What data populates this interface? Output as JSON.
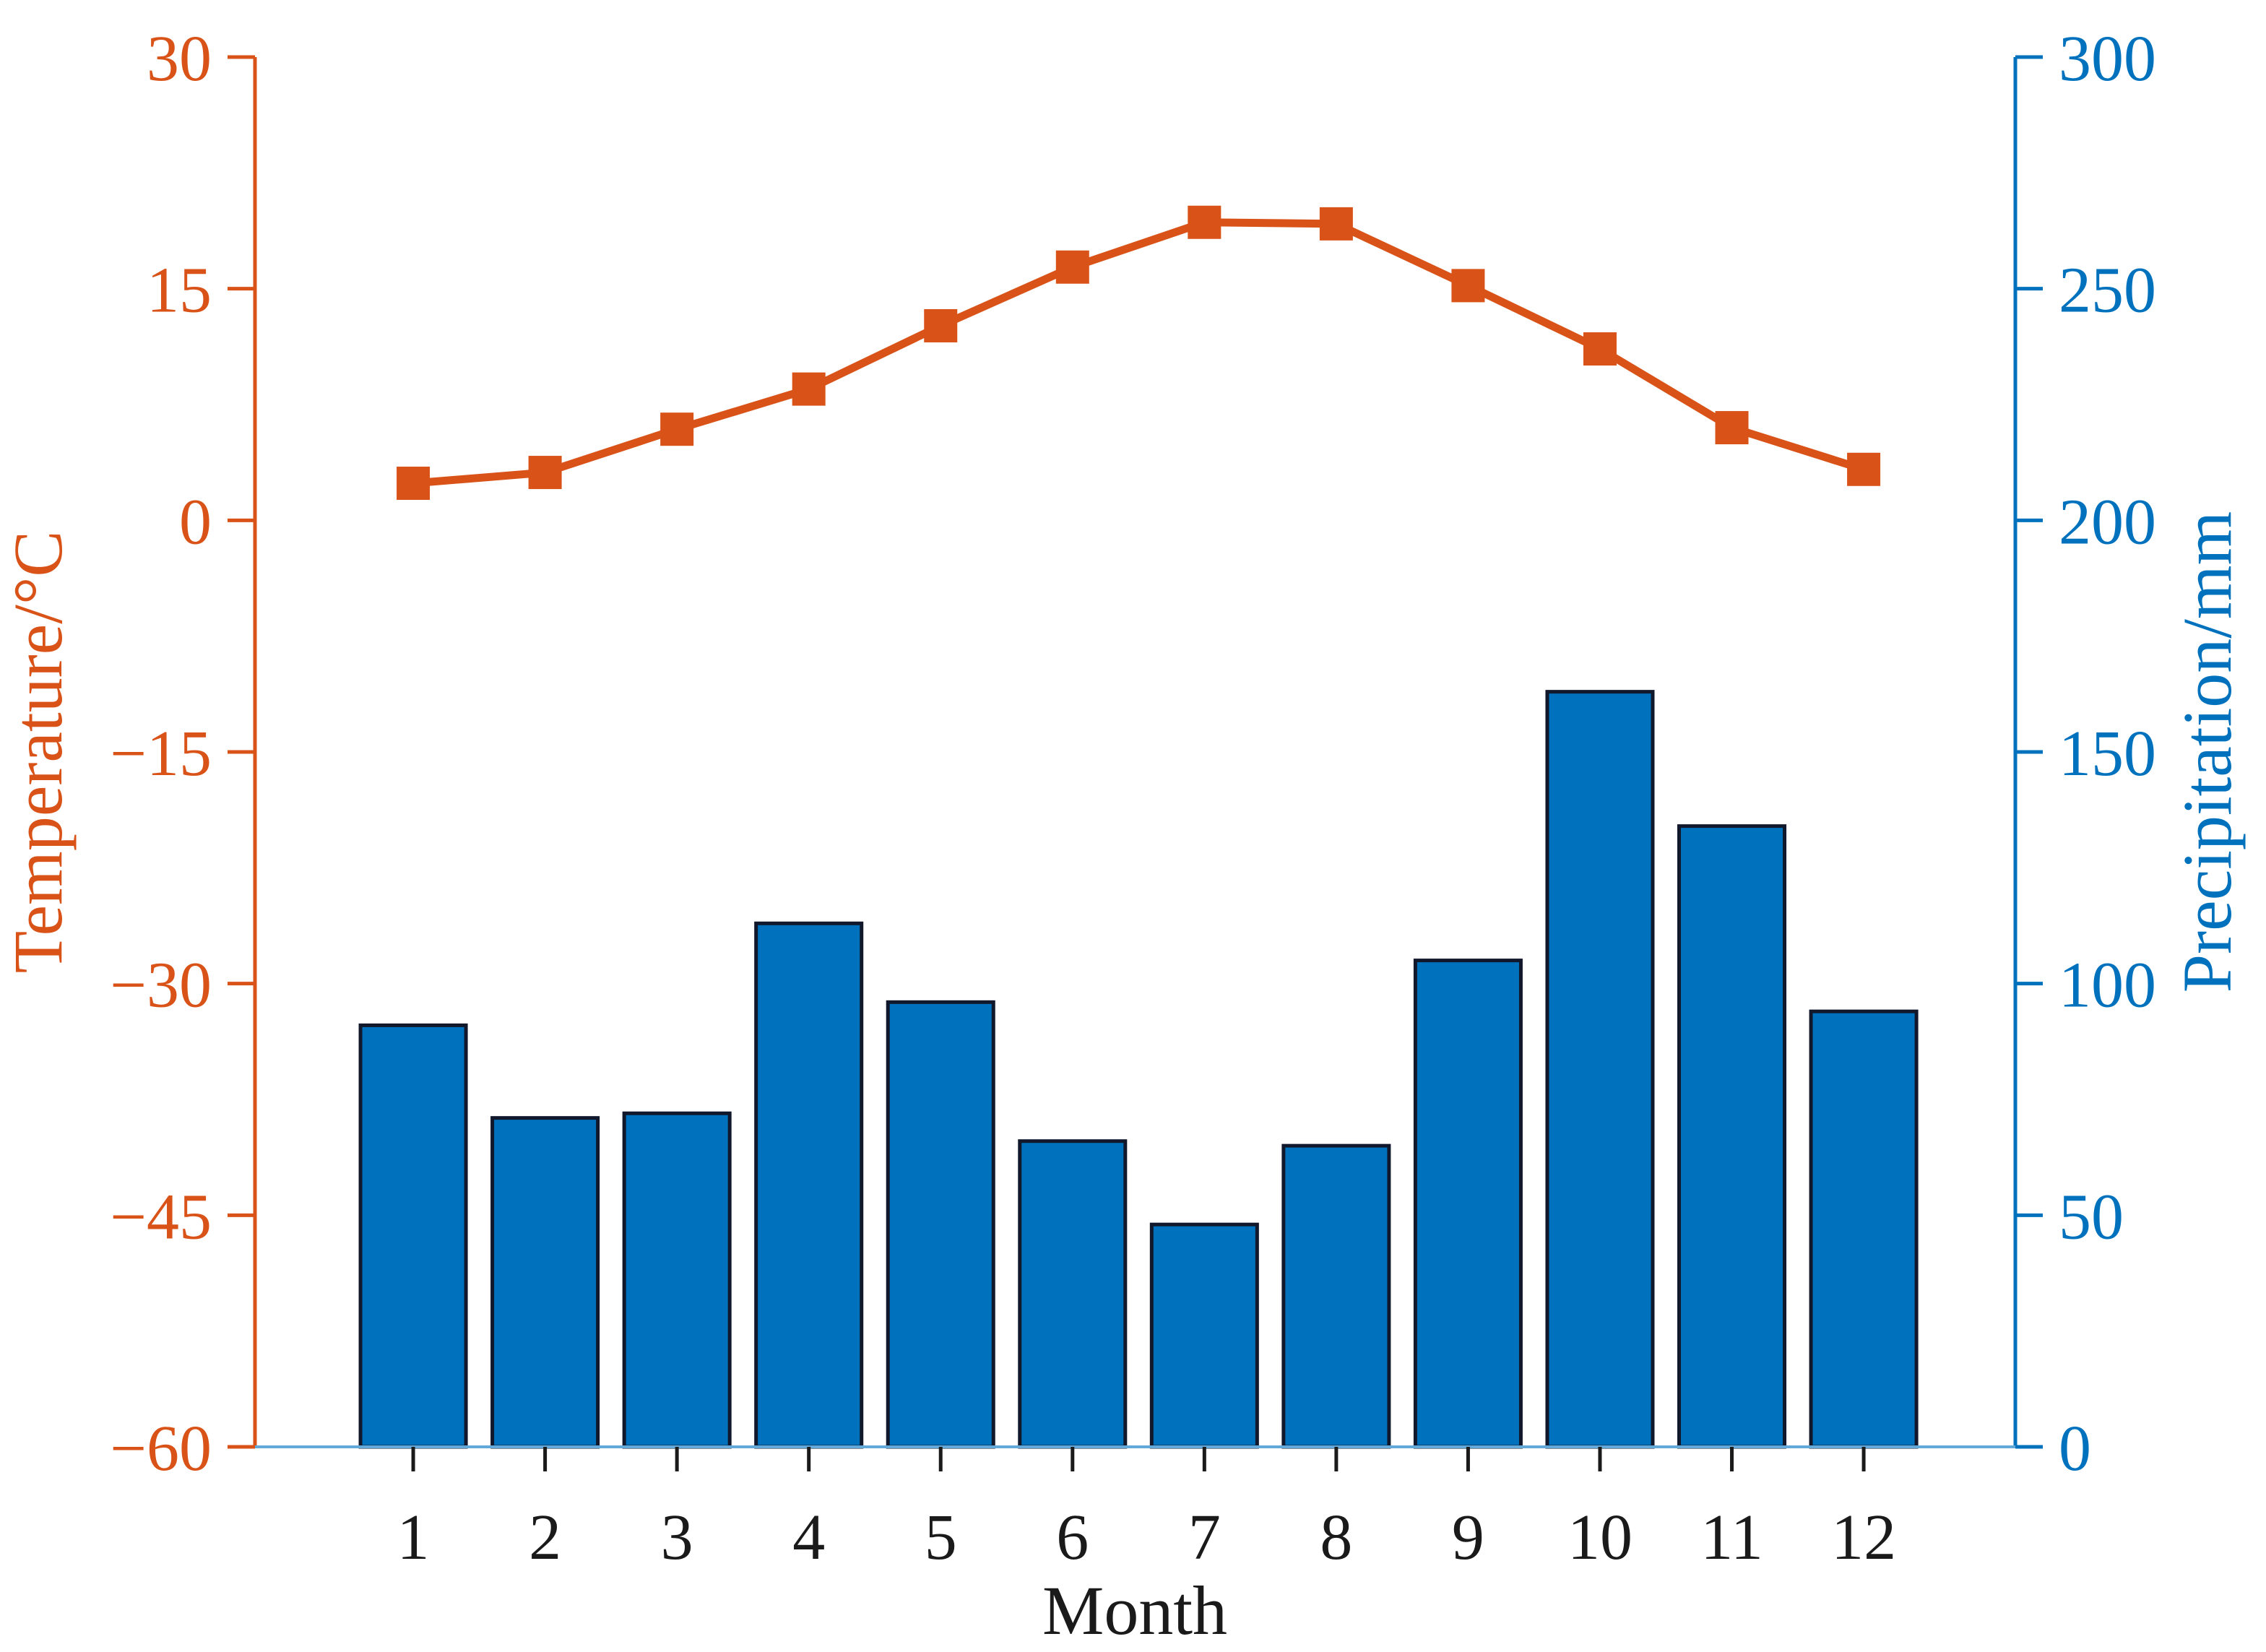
{
  "figure": {
    "background": "#ffffff",
    "accent_orange": "#D95319",
    "accent_blue": "#0072BD",
    "bar_edge_color": "#11182b",
    "bottom_spine_color": "#62a8d8",
    "x_tick_color": "#1a1a1a"
  },
  "axes": {
    "left": {
      "label": "Temperature/°C",
      "color": "#D95319",
      "ticks": [
        30,
        15,
        0,
        -15,
        -30,
        -45,
        -60
      ],
      "range": [
        -60,
        30
      ]
    },
    "right": {
      "label": "Precipitation/mm",
      "color": "#0072BD",
      "ticks": [
        300,
        250,
        200,
        150,
        100,
        50,
        0
      ],
      "range": [
        0,
        300
      ]
    },
    "x": {
      "label": "Month",
      "color": "#1a1a1a",
      "ticks": [
        1,
        2,
        3,
        4,
        5,
        6,
        7,
        8,
        9,
        10,
        11,
        12
      ],
      "range": [
        -0.2,
        13.15
      ]
    }
  },
  "chart_data": {
    "type": "combo",
    "title": "",
    "xlabel": "Month",
    "ylabel_left": "Temperature/°C",
    "ylabel_right": "Precipitation/mm",
    "categories": [
      1,
      2,
      3,
      4,
      5,
      6,
      7,
      8,
      9,
      10,
      11,
      12
    ],
    "series": [
      {
        "name": "Precipitation/mm",
        "type": "bar",
        "axis": "right",
        "color": "#0072BD",
        "edge_color": "#11182b",
        "bar_width_ratio": 0.8,
        "values": [
          91,
          71,
          72,
          113,
          96,
          66,
          48,
          65,
          105,
          163,
          134,
          94
        ]
      },
      {
        "name": "Temperature/°C",
        "type": "line",
        "axis": "left",
        "color": "#D95319",
        "marker": "square",
        "marker_size": 46,
        "line_width": 11,
        "values": [
          2.4,
          3.1,
          5.9,
          8.5,
          12.6,
          16.4,
          19.3,
          19.2,
          15.2,
          11.1,
          6.0,
          3.3
        ]
      }
    ],
    "xlim": [
      -0.2,
      13.15
    ],
    "ylim_left": [
      -60,
      30
    ],
    "ylim_right": [
      0,
      300
    ],
    "grid": false,
    "legend": "none"
  }
}
